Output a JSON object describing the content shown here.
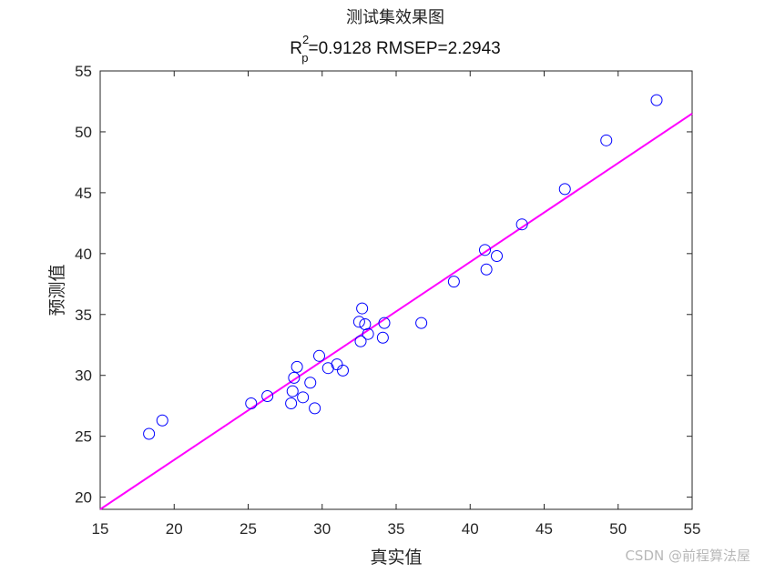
{
  "watermark": "CSDN @前程算法屋",
  "chart_data": {
    "type": "scatter",
    "title": "测试集效果图",
    "subtitle": {
      "r": "R",
      "sup": "2",
      "sub": "p",
      "rest": "=0.9128  RMSEP=2.2943"
    },
    "xlabel": "真实值",
    "ylabel": "预测值",
    "xlim": [
      15,
      55
    ],
    "ylim": [
      19,
      55
    ],
    "xticks": [
      15,
      20,
      25,
      30,
      35,
      40,
      45,
      50,
      55
    ],
    "yticks": [
      20,
      25,
      30,
      35,
      40,
      45,
      50,
      55
    ],
    "marker_color": "#0000ff",
    "line_color": "#ff00ff",
    "fit_line": [
      [
        15,
        19.0
      ],
      [
        55,
        51.5
      ]
    ],
    "points": [
      {
        "x": 18.3,
        "y": 25.2
      },
      {
        "x": 19.2,
        "y": 26.3
      },
      {
        "x": 25.2,
        "y": 27.7
      },
      {
        "x": 26.3,
        "y": 28.3
      },
      {
        "x": 27.9,
        "y": 27.7
      },
      {
        "x": 28.0,
        "y": 28.7
      },
      {
        "x": 28.1,
        "y": 29.8
      },
      {
        "x": 28.3,
        "y": 30.7
      },
      {
        "x": 28.7,
        "y": 28.2
      },
      {
        "x": 29.2,
        "y": 29.4
      },
      {
        "x": 29.5,
        "y": 27.3
      },
      {
        "x": 29.8,
        "y": 31.6
      },
      {
        "x": 30.4,
        "y": 30.6
      },
      {
        "x": 31.0,
        "y": 30.9
      },
      {
        "x": 31.4,
        "y": 30.4
      },
      {
        "x": 32.5,
        "y": 34.4
      },
      {
        "x": 32.6,
        "y": 32.8
      },
      {
        "x": 32.7,
        "y": 35.5
      },
      {
        "x": 32.9,
        "y": 34.2
      },
      {
        "x": 33.1,
        "y": 33.4
      },
      {
        "x": 34.1,
        "y": 33.1
      },
      {
        "x": 34.2,
        "y": 34.3
      },
      {
        "x": 36.7,
        "y": 34.3
      },
      {
        "x": 38.9,
        "y": 37.7
      },
      {
        "x": 41.0,
        "y": 40.3
      },
      {
        "x": 41.1,
        "y": 38.7
      },
      {
        "x": 41.8,
        "y": 39.8
      },
      {
        "x": 43.5,
        "y": 42.4
      },
      {
        "x": 46.4,
        "y": 45.3
      },
      {
        "x": 49.2,
        "y": 49.3
      },
      {
        "x": 52.6,
        "y": 52.6
      }
    ]
  }
}
